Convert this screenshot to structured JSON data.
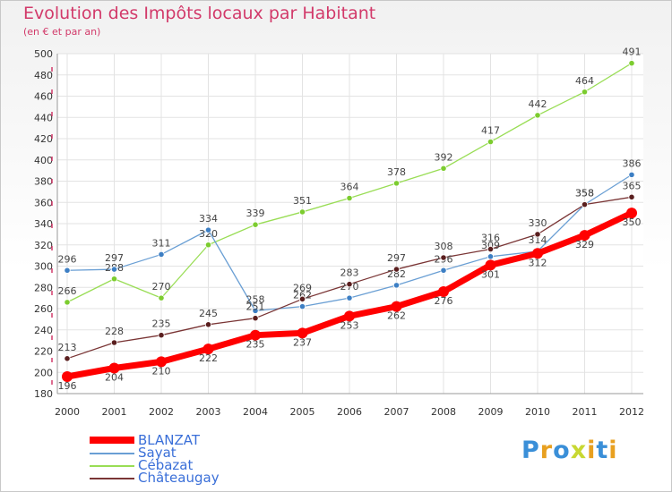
{
  "chart_data": {
    "type": "line",
    "title": "Evolution des Impôts locaux par Habitant",
    "subtitle": "(en € et par an)",
    "xlabel": "",
    "ylabel": "",
    "ylim": [
      180,
      500
    ],
    "yticks": [
      180,
      200,
      220,
      240,
      260,
      280,
      300,
      320,
      340,
      360,
      380,
      400,
      420,
      440,
      460,
      480,
      500
    ],
    "categories": [
      "2000",
      "2001",
      "2002",
      "2003",
      "2004",
      "2005",
      "2006",
      "2007",
      "2008",
      "2009",
      "2010",
      "2011",
      "2012"
    ],
    "grid": true,
    "legend_position": "bottom-left",
    "series": [
      {
        "name": "BLANZAT",
        "color": "#ff0000",
        "values": [
          196,
          204,
          210,
          222,
          235,
          237,
          253,
          262,
          276,
          301,
          312,
          329,
          350
        ]
      },
      {
        "name": "Sayat",
        "color": "#6a9fd4",
        "values": [
          296,
          297,
          311,
          334,
          258,
          262,
          270,
          282,
          296,
          309,
          314,
          358,
          386
        ]
      },
      {
        "name": "Cébazat",
        "color": "#99dd55",
        "values": [
          266,
          288,
          270,
          320,
          339,
          351,
          364,
          378,
          392,
          417,
          442,
          464,
          491
        ]
      },
      {
        "name": "Châteaugay",
        "color": "#7a3535",
        "values": [
          213,
          228,
          235,
          245,
          251,
          269,
          283,
          297,
          308,
          316,
          330,
          358,
          365
        ]
      }
    ]
  },
  "logo": {
    "text": "Proxiti",
    "letters": [
      "P",
      "r",
      "o",
      "x",
      "i",
      "t",
      "i"
    ],
    "colors": [
      "#3a8fd8",
      "#e8a020",
      "#3a8fd8",
      "#c8d832",
      "#e8a020",
      "#3a8fd8",
      "#e8a020"
    ]
  }
}
